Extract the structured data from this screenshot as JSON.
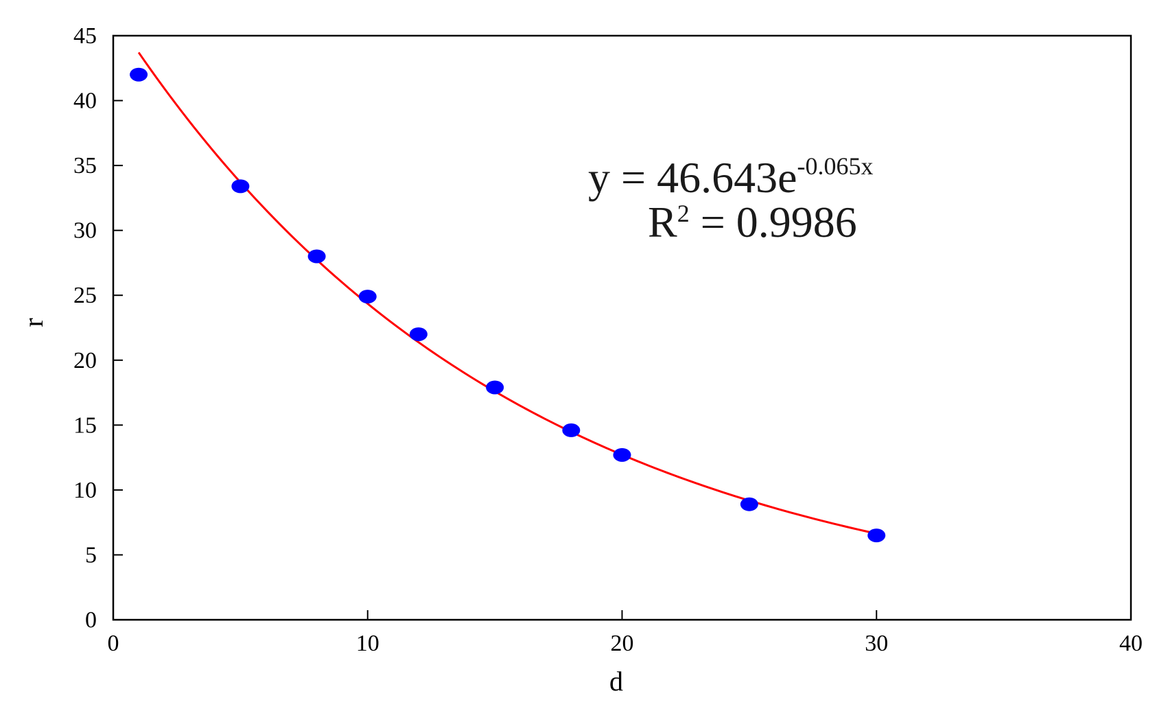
{
  "chart_data": {
    "type": "scatter",
    "title": "",
    "xlabel": "d",
    "ylabel": "r",
    "xlim": [
      0,
      40
    ],
    "ylim": [
      0,
      45
    ],
    "x_ticks": [
      0,
      10,
      20,
      30,
      40
    ],
    "y_ticks": [
      0,
      5,
      10,
      15,
      20,
      25,
      30,
      35,
      40,
      45
    ],
    "grid": false,
    "legend": "none",
    "series": [
      {
        "color": "#0000ff",
        "x": [
          1,
          5,
          8,
          10,
          12,
          15,
          18,
          20,
          25,
          30
        ],
        "y": [
          42,
          33.4,
          28,
          24.9,
          22,
          17.9,
          14.6,
          12.7,
          8.9,
          6.5
        ]
      }
    ],
    "trendline": {
      "type": "exponential",
      "a": 46.643,
      "b": -0.065,
      "x_range": [
        1,
        30
      ],
      "color": "#ff0000"
    },
    "annotations": {
      "equation_main": "y = 46.643e",
      "equation_exponent": "-0.065x",
      "r_squared_prefix": "R",
      "r_squared_superscript": "2",
      "r_squared_value": " = 0.9986"
    }
  }
}
